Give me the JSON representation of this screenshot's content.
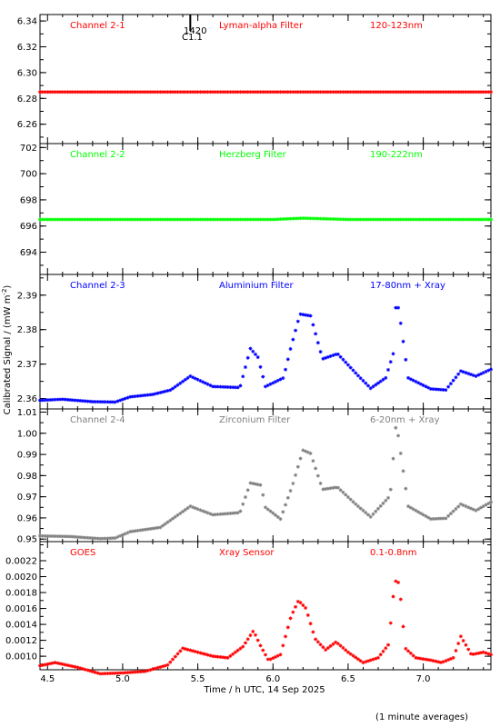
{
  "figure": {
    "ylabel_main": "Calibrated Signal / (mW m",
    "ylabel_sup": "-2",
    "ylabel_close": ")",
    "xlabel": "Time / h UTC, 14 Sep 2025",
    "footnote": "(1 minute averages)",
    "flare_time": "1420",
    "flare_class": "C1.1"
  },
  "chart_data": [
    {
      "type": "scatter",
      "labels": [
        "Channel 2-1",
        "Lyman-alpha Filter",
        "120-123nm"
      ],
      "color": "#ff0000",
      "xlim": [
        4.45,
        7.45
      ],
      "ylim": [
        6.245,
        6.345
      ],
      "yticks": [
        "6.26",
        "6.28",
        "6.30",
        "6.32",
        "6.34"
      ],
      "flare_marker_x": 5.45,
      "points": [
        [
          4.45,
          6.285
        ],
        [
          5.0,
          6.285
        ],
        [
          5.5,
          6.285
        ],
        [
          6.0,
          6.285
        ],
        [
          6.5,
          6.285
        ],
        [
          7.0,
          6.285
        ],
        [
          7.45,
          6.285
        ]
      ]
    },
    {
      "type": "scatter",
      "labels": [
        "Channel 2-2",
        "Herzberg Filter",
        "190-222nm"
      ],
      "color": "#00ff00",
      "xlim": [
        4.45,
        7.45
      ],
      "ylim": [
        692.3,
        702.3
      ],
      "yticks": [
        "694",
        "696",
        "698",
        "700",
        "702"
      ],
      "points": [
        [
          4.45,
          696.5
        ],
        [
          5.0,
          696.5
        ],
        [
          5.5,
          696.5
        ],
        [
          6.0,
          696.5
        ],
        [
          6.2,
          696.6
        ],
        [
          6.5,
          696.5
        ],
        [
          7.0,
          696.5
        ],
        [
          7.45,
          696.5
        ]
      ]
    },
    {
      "type": "scatter",
      "labels": [
        "Channel 2-3",
        "Aluminium Filter",
        "17-80nm + Xray"
      ],
      "color": "#0000ff",
      "xlim": [
        4.45,
        7.45
      ],
      "ylim": [
        2.357,
        2.396
      ],
      "yticks": [
        "2.36",
        "2.37",
        "2.38",
        "2.39"
      ],
      "points": [
        [
          4.45,
          2.3595
        ],
        [
          4.6,
          2.3598
        ],
        [
          4.8,
          2.3591
        ],
        [
          4.95,
          2.359
        ],
        [
          5.05,
          2.3605
        ],
        [
          5.2,
          2.3612
        ],
        [
          5.32,
          2.3625
        ],
        [
          5.45,
          2.3665
        ],
        [
          5.6,
          2.3635
        ],
        [
          5.78,
          2.3632
        ],
        [
          5.85,
          2.3745
        ],
        [
          5.9,
          2.372
        ],
        [
          5.95,
          2.3635
        ],
        [
          6.07,
          2.366
        ],
        [
          6.12,
          2.375
        ],
        [
          6.18,
          2.3845
        ],
        [
          6.25,
          2.384
        ],
        [
          6.33,
          2.3715
        ],
        [
          6.43,
          2.373
        ],
        [
          6.57,
          2.3665
        ],
        [
          6.65,
          2.363
        ],
        [
          6.75,
          2.366
        ],
        [
          6.8,
          2.373
        ],
        [
          6.82,
          2.389
        ],
        [
          6.84,
          2.385
        ],
        [
          6.9,
          2.366
        ],
        [
          7.05,
          2.3628
        ],
        [
          7.15,
          2.3625
        ],
        [
          7.25,
          2.368
        ],
        [
          7.35,
          2.3665
        ],
        [
          7.45,
          2.3685
        ]
      ]
    },
    {
      "type": "scatter",
      "labels": [
        "Channel 2-4",
        "Zirconium Filter",
        "6-20nm + Xray"
      ],
      "color": "#808080",
      "xlim": [
        4.45,
        7.45
      ],
      "ylim": [
        0.9488,
        1.0115
      ],
      "yticks": [
        "0.95",
        "0.96",
        "0.97",
        "0.98",
        "0.99",
        "1.00",
        "1.01"
      ],
      "points": [
        [
          4.45,
          0.9515
        ],
        [
          4.65,
          0.9512
        ],
        [
          4.85,
          0.9502
        ],
        [
          4.95,
          0.9505
        ],
        [
          5.05,
          0.9535
        ],
        [
          5.25,
          0.9555
        ],
        [
          5.45,
          0.9655
        ],
        [
          5.6,
          0.9615
        ],
        [
          5.78,
          0.9625
        ],
        [
          5.85,
          0.9765
        ],
        [
          5.92,
          0.9755
        ],
        [
          5.95,
          0.965
        ],
        [
          6.05,
          0.9595
        ],
        [
          6.13,
          0.9755
        ],
        [
          6.2,
          0.992
        ],
        [
          6.25,
          0.9905
        ],
        [
          6.33,
          0.9735
        ],
        [
          6.43,
          0.9745
        ],
        [
          6.55,
          0.9665
        ],
        [
          6.65,
          0.9605
        ],
        [
          6.78,
          0.9705
        ],
        [
          6.82,
          1.0055
        ],
        [
          6.84,
          0.9955
        ],
        [
          6.9,
          0.9655
        ],
        [
          7.05,
          0.9595
        ],
        [
          7.15,
          0.9598
        ],
        [
          7.25,
          0.9665
        ],
        [
          7.35,
          0.9635
        ],
        [
          7.45,
          0.9675
        ]
      ]
    },
    {
      "type": "scatter",
      "labels": [
        "GOES",
        "Xray Sensor",
        "0.1-0.8nm"
      ],
      "color": "#ff0000",
      "xlim": [
        4.45,
        7.45
      ],
      "ylim": [
        0.00083,
        0.00244
      ],
      "yticks": [
        "0.0010",
        "0.0012",
        "0.0014",
        "0.0016",
        "0.0018",
        "0.0020",
        "0.0022"
      ],
      "points": [
        [
          4.45,
          0.00088
        ],
        [
          4.55,
          0.00092
        ],
        [
          4.7,
          0.00086
        ],
        [
          4.85,
          0.00078
        ],
        [
          5.0,
          0.00079
        ],
        [
          5.15,
          0.00081
        ],
        [
          5.3,
          0.00089
        ],
        [
          5.4,
          0.0011
        ],
        [
          5.5,
          0.00105
        ],
        [
          5.6,
          0.001
        ],
        [
          5.7,
          0.00098
        ],
        [
          5.8,
          0.00112
        ],
        [
          5.87,
          0.00132
        ],
        [
          5.92,
          0.00112
        ],
        [
          5.97,
          0.00095
        ],
        [
          6.05,
          0.00102
        ],
        [
          6.12,
          0.0015
        ],
        [
          6.17,
          0.0017
        ],
        [
          6.22,
          0.0016
        ],
        [
          6.28,
          0.00122
        ],
        [
          6.35,
          0.00108
        ],
        [
          6.42,
          0.00118
        ],
        [
          6.5,
          0.00105
        ],
        [
          6.6,
          0.00092
        ],
        [
          6.7,
          0.00098
        ],
        [
          6.77,
          0.00115
        ],
        [
          6.81,
          0.00195
        ],
        [
          6.84,
          0.00192
        ],
        [
          6.88,
          0.0011
        ],
        [
          6.95,
          0.00098
        ],
        [
          7.05,
          0.00095
        ],
        [
          7.12,
          0.00092
        ],
        [
          7.2,
          0.00098
        ],
        [
          7.25,
          0.00125
        ],
        [
          7.32,
          0.00102
        ],
        [
          7.4,
          0.00105
        ],
        [
          7.45,
          0.00102
        ]
      ]
    }
  ],
  "xaxis": {
    "ticks": [
      "4.5",
      "5.0",
      "5.5",
      "6.0",
      "6.5",
      "7.0"
    ],
    "tick_values": [
      4.5,
      5.0,
      5.5,
      6.0,
      6.5,
      7.0
    ]
  }
}
